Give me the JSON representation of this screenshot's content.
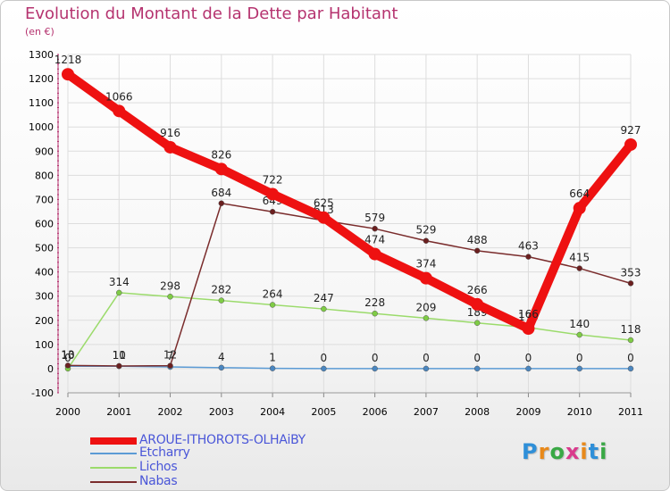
{
  "colors": {
    "title": "#b5336f",
    "axis_text": "#000000",
    "grid": "#dddddd",
    "legend_text": "#4a56d8"
  },
  "chart_data": {
    "type": "line",
    "title": "Evolution du Montant de la Dette par Habitant",
    "subtitle": "(en €)",
    "xlabel": "",
    "ylabel": "",
    "x": [
      "2000",
      "2001",
      "2002",
      "2003",
      "2004",
      "2005",
      "2006",
      "2007",
      "2008",
      "2009",
      "2010",
      "2011"
    ],
    "ylim": [
      -100,
      1300
    ],
    "yticks": [
      "-100",
      "0",
      "100",
      "200",
      "300",
      "400",
      "500",
      "600",
      "700",
      "800",
      "900",
      "1000",
      "1100",
      "1200",
      "1300"
    ],
    "ytick_values": [
      -100,
      0,
      100,
      200,
      300,
      400,
      500,
      600,
      700,
      800,
      900,
      1000,
      1100,
      1200,
      1300
    ],
    "grid": true,
    "legend_position": "bottom-left",
    "series": [
      {
        "name": "Etcharry",
        "color": "#5b9bd5",
        "marker": "#4a86c0",
        "emphasis": "thin",
        "values": [
          10,
          10,
          7,
          4,
          1,
          0,
          0,
          0,
          0,
          0,
          0,
          0
        ],
        "labels": [
          "10",
          "10",
          "7",
          "4",
          "1",
          "0",
          "0",
          "0",
          "0",
          "0",
          "0",
          "0"
        ]
      },
      {
        "name": "Lichos",
        "color": "#9bdb6b",
        "marker": "#7fcc45",
        "emphasis": "thin",
        "values": [
          0,
          314,
          298,
          282,
          264,
          247,
          228,
          209,
          189,
          170,
          140,
          118
        ],
        "labels": [
          "0",
          "314",
          "298",
          "282",
          "264",
          "247",
          "228",
          "209",
          "189",
          "170",
          "140",
          "118"
        ]
      },
      {
        "name": "Nabas",
        "color": "#7a2c2c",
        "marker": "#6b1f1f",
        "emphasis": "thin",
        "values": [
          13,
          11,
          12,
          684,
          649,
          613,
          579,
          529,
          488,
          463,
          415,
          353
        ],
        "labels": [
          "13",
          "11",
          "12",
          "684",
          "649",
          "613",
          "579",
          "529",
          "488",
          "463",
          "415",
          "353"
        ]
      },
      {
        "name": "AROUE-ITHOROTS-OLHAiBY",
        "color": "#ee1111",
        "marker": "#ee1111",
        "emphasis": "thick",
        "values": [
          1218,
          1066,
          916,
          826,
          722,
          625,
          474,
          374,
          266,
          166,
          664,
          927
        ],
        "labels": [
          "1218",
          "1066",
          "916",
          "826",
          "722",
          "625",
          "474",
          "374",
          "266",
          "166",
          "664",
          "927"
        ]
      }
    ]
  },
  "legend": {
    "items": [
      {
        "label": "AROUE-ITHOROTS-OLHAiBY",
        "color": "#ee1111",
        "thickness": 8
      },
      {
        "label": "Etcharry",
        "color": "#5b9bd5",
        "thickness": 2
      },
      {
        "label": "Lichos",
        "color": "#9bdb6b",
        "thickness": 2
      },
      {
        "label": "Nabas",
        "color": "#7a2c2c",
        "thickness": 2
      }
    ]
  },
  "logo": {
    "text": "Proxiti",
    "letters": [
      "P",
      "r",
      "o",
      "x",
      "i",
      "t",
      "i"
    ],
    "letter_colors": [
      "#2f8fd8",
      "#e8891a",
      "#39a845",
      "#d93a8c",
      "#e8891a",
      "#2f8fd8",
      "#39a845"
    ]
  }
}
